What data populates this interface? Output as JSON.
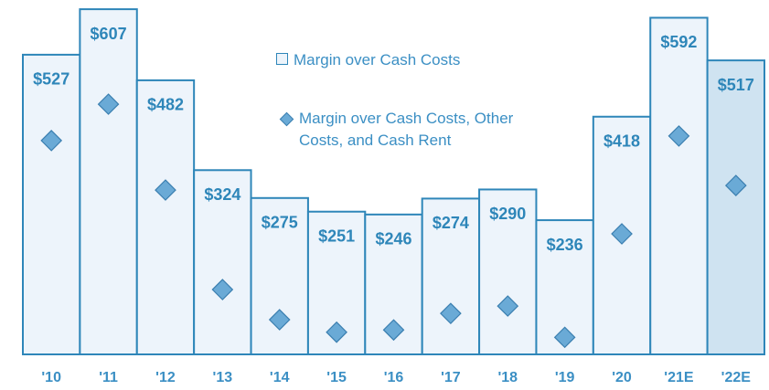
{
  "chart_data": {
    "type": "bar",
    "categories": [
      "'10",
      "'11",
      "'12",
      "'13",
      "'14",
      "'15",
      "'16",
      "'17",
      "'18",
      "'19",
      "'20",
      "'21E",
      "'22E"
    ],
    "series": [
      {
        "name": "Margin over Cash Costs",
        "color": "#2e86b9",
        "fills": [
          "#edf4fb",
          "#edf4fb",
          "#edf4fb",
          "#edf4fb",
          "#edf4fb",
          "#edf4fb",
          "#edf4fb",
          "#edf4fb",
          "#edf4fb",
          "#edf4fb",
          "#edf4fb",
          "#edf4fb",
          "#cfe3f1"
        ],
        "values": [
          527,
          607,
          482,
          324,
          275,
          251,
          246,
          274,
          290,
          236,
          418,
          592,
          517
        ],
        "value_labels": [
          "$527",
          "$607",
          "$482",
          "$324",
          "$275",
          "$251",
          "$246",
          "$274",
          "$290",
          "$236",
          "$418",
          "$592",
          "$517"
        ]
      },
      {
        "name": "Margin over Cash Costs, Other Costs, and Cash Rent",
        "color": "#6aaad6",
        "values": [
          376,
          440,
          289,
          114,
          61,
          39,
          43,
          72,
          85,
          30,
          212,
          384,
          297
        ]
      }
    ],
    "ylim": [
      0,
      620
    ]
  }
}
